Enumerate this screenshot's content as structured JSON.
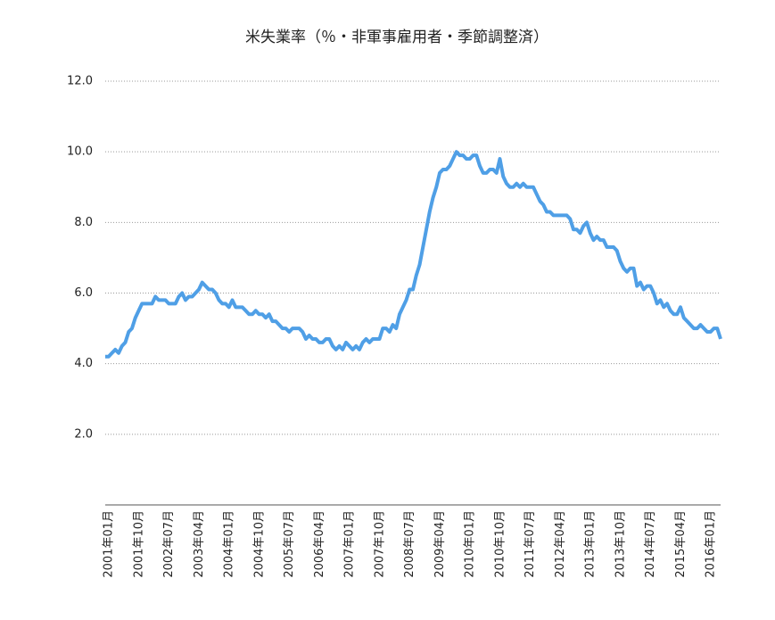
{
  "chart_data": {
    "type": "line",
    "title": "米失業率（％・非軍事雇用者・季節調整済）",
    "categories": [
      "2001年01月",
      null,
      null,
      null,
      null,
      null,
      null,
      null,
      null,
      "2001年10月",
      null,
      null,
      null,
      null,
      null,
      null,
      null,
      null,
      "2002年07月",
      null,
      null,
      null,
      null,
      null,
      null,
      null,
      null,
      "2003年04月",
      null,
      null,
      null,
      null,
      null,
      null,
      null,
      null,
      "2004年01月",
      null,
      null,
      null,
      null,
      null,
      null,
      null,
      null,
      "2004年10月",
      null,
      null,
      null,
      null,
      null,
      null,
      null,
      null,
      "2005年07月",
      null,
      null,
      null,
      null,
      null,
      null,
      null,
      null,
      "2006年04月",
      null,
      null,
      null,
      null,
      null,
      null,
      null,
      null,
      "2007年01月",
      null,
      null,
      null,
      null,
      null,
      null,
      null,
      null,
      "2007年10月",
      null,
      null,
      null,
      null,
      null,
      null,
      null,
      null,
      "2008年07月",
      null,
      null,
      null,
      null,
      null,
      null,
      null,
      null,
      "2009年04月",
      null,
      null,
      null,
      null,
      null,
      null,
      null,
      null,
      "2010年01月",
      null,
      null,
      null,
      null,
      null,
      null,
      null,
      null,
      "2010年10月",
      null,
      null,
      null,
      null,
      null,
      null,
      null,
      null,
      "2011年07月",
      null,
      null,
      null,
      null,
      null,
      null,
      null,
      null,
      "2012年04月",
      null,
      null,
      null,
      null,
      null,
      null,
      null,
      null,
      "2013年01月",
      null,
      null,
      null,
      null,
      null,
      null,
      null,
      null,
      "2013年10月",
      null,
      null,
      null,
      null,
      null,
      null,
      null,
      null,
      "2014年07月",
      null,
      null,
      null,
      null,
      null,
      null,
      null,
      null,
      "2015年04月",
      null,
      null,
      null,
      null,
      null,
      null,
      null,
      null,
      "2016年01月",
      null,
      null,
      null,
      null
    ],
    "values": [
      4.2,
      4.2,
      4.3,
      4.4,
      4.3,
      4.5,
      4.6,
      4.9,
      5.0,
      5.3,
      5.5,
      5.7,
      5.7,
      5.7,
      5.7,
      5.9,
      5.8,
      5.8,
      5.8,
      5.7,
      5.7,
      5.7,
      5.9,
      6.0,
      5.8,
      5.9,
      5.9,
      6.0,
      6.1,
      6.3,
      6.2,
      6.1,
      6.1,
      6.0,
      5.8,
      5.7,
      5.7,
      5.6,
      5.8,
      5.6,
      5.6,
      5.6,
      5.5,
      5.4,
      5.4,
      5.5,
      5.4,
      5.4,
      5.3,
      5.4,
      5.2,
      5.2,
      5.1,
      5.0,
      5.0,
      4.9,
      5.0,
      5.0,
      5.0,
      4.9,
      4.7,
      4.8,
      4.7,
      4.7,
      4.6,
      4.6,
      4.7,
      4.7,
      4.5,
      4.4,
      4.5,
      4.4,
      4.6,
      4.5,
      4.4,
      4.5,
      4.4,
      4.6,
      4.7,
      4.6,
      4.7,
      4.7,
      4.7,
      5.0,
      5.0,
      4.9,
      5.1,
      5.0,
      5.4,
      5.6,
      5.8,
      6.1,
      6.1,
      6.5,
      6.8,
      7.3,
      7.8,
      8.3,
      8.7,
      9.0,
      9.4,
      9.5,
      9.5,
      9.6,
      9.8,
      10.0,
      9.9,
      9.9,
      9.8,
      9.8,
      9.9,
      9.9,
      9.6,
      9.4,
      9.4,
      9.5,
      9.5,
      9.4,
      9.8,
      9.3,
      9.1,
      9.0,
      9.0,
      9.1,
      9.0,
      9.1,
      9.0,
      9.0,
      9.0,
      8.8,
      8.6,
      8.5,
      8.3,
      8.3,
      8.2,
      8.2,
      8.2,
      8.2,
      8.2,
      8.1,
      7.8,
      7.8,
      7.7,
      7.9,
      8.0,
      7.7,
      7.5,
      7.6,
      7.5,
      7.5,
      7.3,
      7.3,
      7.3,
      7.2,
      6.9,
      6.7,
      6.6,
      6.7,
      6.7,
      6.2,
      6.3,
      6.1,
      6.2,
      6.2,
      6.0,
      5.7,
      5.8,
      5.6,
      5.7,
      5.5,
      5.4,
      5.4,
      5.6,
      5.3,
      5.2,
      5.1,
      5.0,
      5.0,
      5.1,
      5.0,
      4.9,
      4.9,
      5.0,
      5.0,
      4.7
    ],
    "color": "#4f9fe6",
    "ylim": [
      0,
      12
    ],
    "yticks": [
      {
        "value": 2,
        "label": "2.0"
      },
      {
        "value": 4,
        "label": "4.0"
      },
      {
        "value": 6,
        "label": "6.0"
      },
      {
        "value": 8,
        "label": "8.0"
      },
      {
        "value": 10,
        "label": "10.0"
      },
      {
        "value": 12,
        "label": "12.0"
      }
    ],
    "grid": true
  }
}
